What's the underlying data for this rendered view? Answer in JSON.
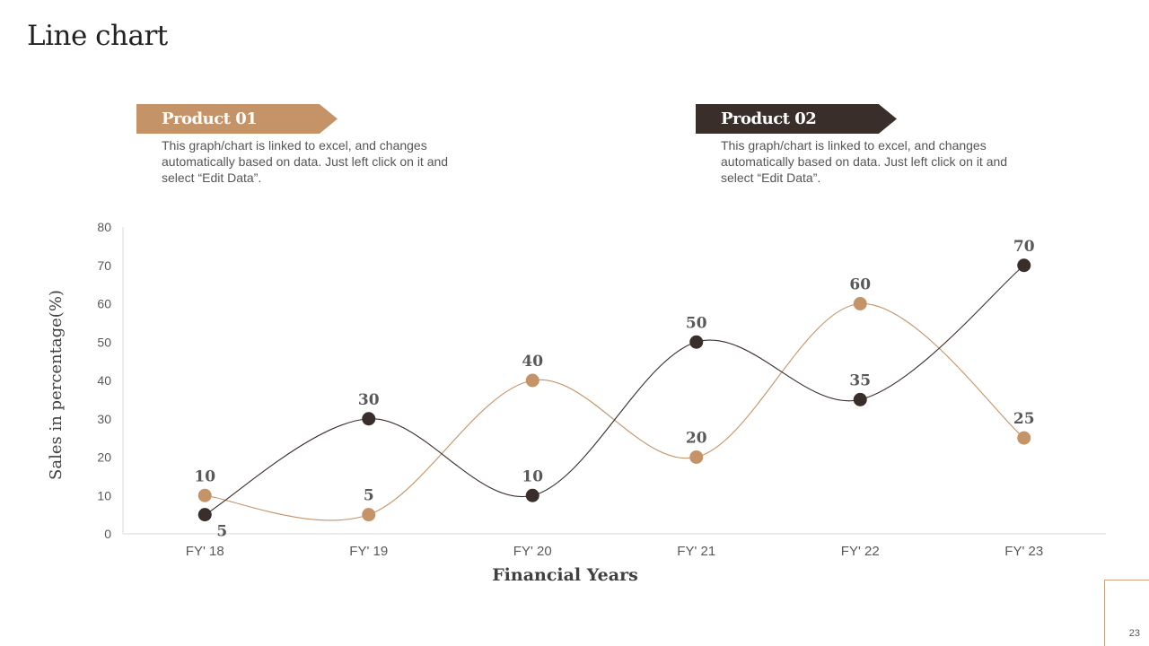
{
  "slide": {
    "title": "Line chart",
    "number": "23"
  },
  "legend_boxes": [
    {
      "label": "Product 01",
      "color": "#c49368",
      "text": "This graph/chart is linked to excel, and changes automatically based on data. Just left click on it and select “Edit Data”."
    },
    {
      "label": "Product 02",
      "color": "#3a2e2b",
      "text": "This graph/chart is linked to excel, and changes automatically based on data. Just left click on it and select “Edit Data”."
    }
  ],
  "chart_data": {
    "type": "line",
    "title": "",
    "xlabel": "Financial Years",
    "ylabel": "Sales in percentage(%)",
    "categories": [
      "FY' 18",
      "FY' 19",
      "FY' 20",
      "FY' 21",
      "FY' 22",
      "FY' 23"
    ],
    "ylim": [
      0,
      80
    ],
    "yticks": [
      0,
      10,
      20,
      30,
      40,
      50,
      60,
      70,
      80
    ],
    "grid": false,
    "smooth": true,
    "series": [
      {
        "name": "Product 01",
        "color": "#c49368",
        "values": [
          10,
          5,
          40,
          20,
          60,
          25
        ]
      },
      {
        "name": "Product 02",
        "color": "#3a2e2b",
        "values": [
          5,
          30,
          10,
          50,
          35,
          70
        ]
      }
    ]
  }
}
